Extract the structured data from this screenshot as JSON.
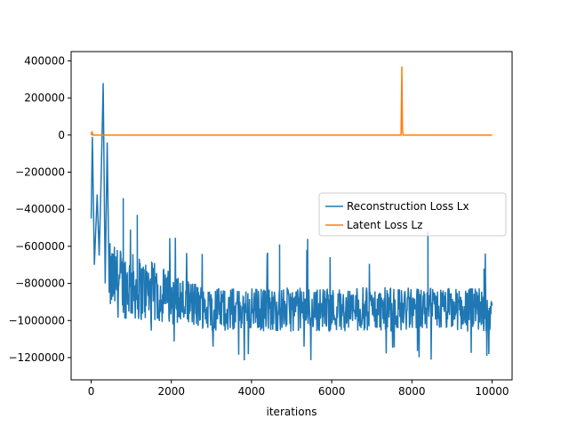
{
  "chart_data": {
    "type": "line",
    "title": "",
    "xlabel": "iterations",
    "ylabel": "",
    "xlim": [
      -500,
      10500
    ],
    "ylim": [
      -1320000,
      450000
    ],
    "xticks": [
      0,
      2000,
      4000,
      6000,
      8000,
      10000
    ],
    "yticks": [
      400000,
      200000,
      0,
      -200000,
      -400000,
      -600000,
      -800000,
      -1000000,
      -1200000
    ],
    "grid": false,
    "legend_position": "center-right",
    "series": [
      {
        "name": "Reconstruction Loss Lx",
        "color": "#1f77b4",
        "description_points": [
          {
            "x": 0,
            "y": -450000
          },
          {
            "x": 30,
            "y": -10000
          },
          {
            "x": 80,
            "y": -700000
          },
          {
            "x": 150,
            "y": -320000
          },
          {
            "x": 200,
            "y": -650000
          },
          {
            "x": 250,
            "y": -220000
          },
          {
            "x": 300,
            "y": 280000
          },
          {
            "x": 350,
            "y": -800000
          },
          {
            "x": 400,
            "y": -40000
          },
          {
            "x": 450,
            "y": -850000
          },
          {
            "x": 800,
            "y": -340000
          },
          {
            "x": 1150,
            "y": -430000
          },
          {
            "x": 4700,
            "y": -590000
          },
          {
            "x": 5400,
            "y": -560000
          },
          {
            "x": 8400,
            "y": -520000
          },
          {
            "x": 10000,
            "y": -900000
          }
        ],
        "band_upper": -700000,
        "band_lower": -1180000,
        "band_center": -940000
      },
      {
        "name": "Latent Loss Lz",
        "color": "#ff7f0e",
        "baseline": 0,
        "start_x": 0,
        "end_x": 10000,
        "spike": {
          "x": 7750,
          "y": 370000
        }
      }
    ]
  }
}
